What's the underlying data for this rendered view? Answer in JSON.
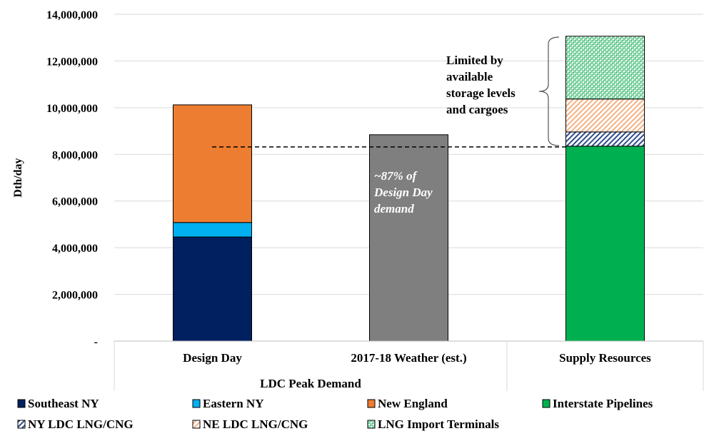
{
  "chart_data": {
    "type": "bar",
    "stacked": true,
    "ylabel": "Dth/day",
    "ylim": [
      0,
      14000000
    ],
    "yticks": [
      0,
      2000000,
      4000000,
      6000000,
      8000000,
      10000000,
      12000000,
      14000000
    ],
    "ytick_labels": [
      "-",
      "2,000,000",
      "4,000,000",
      "6,000,000",
      "8,000,000",
      "10,000,000",
      "12,000,000",
      "14,000,000"
    ],
    "grid": true,
    "categories": [
      "Design Day",
      "2017-18 Weather (est.)",
      "Supply Resources"
    ],
    "category_group_label": "LDC Peak Demand",
    "series": [
      {
        "name": "Southeast NY",
        "color": "#002060",
        "pattern": "solid",
        "values": [
          4460000,
          0,
          0
        ]
      },
      {
        "name": "Eastern NY",
        "color": "#00B0F0",
        "pattern": "solid",
        "values": [
          620000,
          0,
          0
        ]
      },
      {
        "name": "New England",
        "color": "#ED7D31",
        "pattern": "solid",
        "values": [
          5040000,
          0,
          0
        ]
      },
      {
        "name": "Interstate Pipelines",
        "color": "#00B050",
        "pattern": "solid",
        "values": [
          0,
          0,
          8350000
        ]
      },
      {
        "name": "NY LDC LNG/CNG",
        "color": "#2F4C8C",
        "pattern": "diagonal",
        "values": [
          0,
          0,
          610000
        ]
      },
      {
        "name": "NE LDC LNG/CNG",
        "color": "#F4B183",
        "pattern": "diagonal",
        "values": [
          0,
          0,
          1410000
        ]
      },
      {
        "name": "LNG Import Terminals",
        "color": "#3CB371",
        "pattern": "checker",
        "values": [
          0,
          0,
          2690000
        ]
      },
      {
        "name": "",
        "color": "#7F7F7F",
        "pattern": "solid",
        "values": [
          0,
          8840000,
          0
        ]
      }
    ],
    "reference_line": {
      "value": 8320000,
      "style": "dashed"
    },
    "annotations": [
      {
        "text": "~87% of Design Day demand",
        "lines": [
          "~87% of",
          "Design Day",
          "demand"
        ]
      },
      {
        "text": "Limited by available storage levels and cargoes",
        "lines": [
          "Limited by",
          "available",
          "storage levels",
          "and cargoes"
        ]
      }
    ],
    "legend_placement": "bottom"
  }
}
